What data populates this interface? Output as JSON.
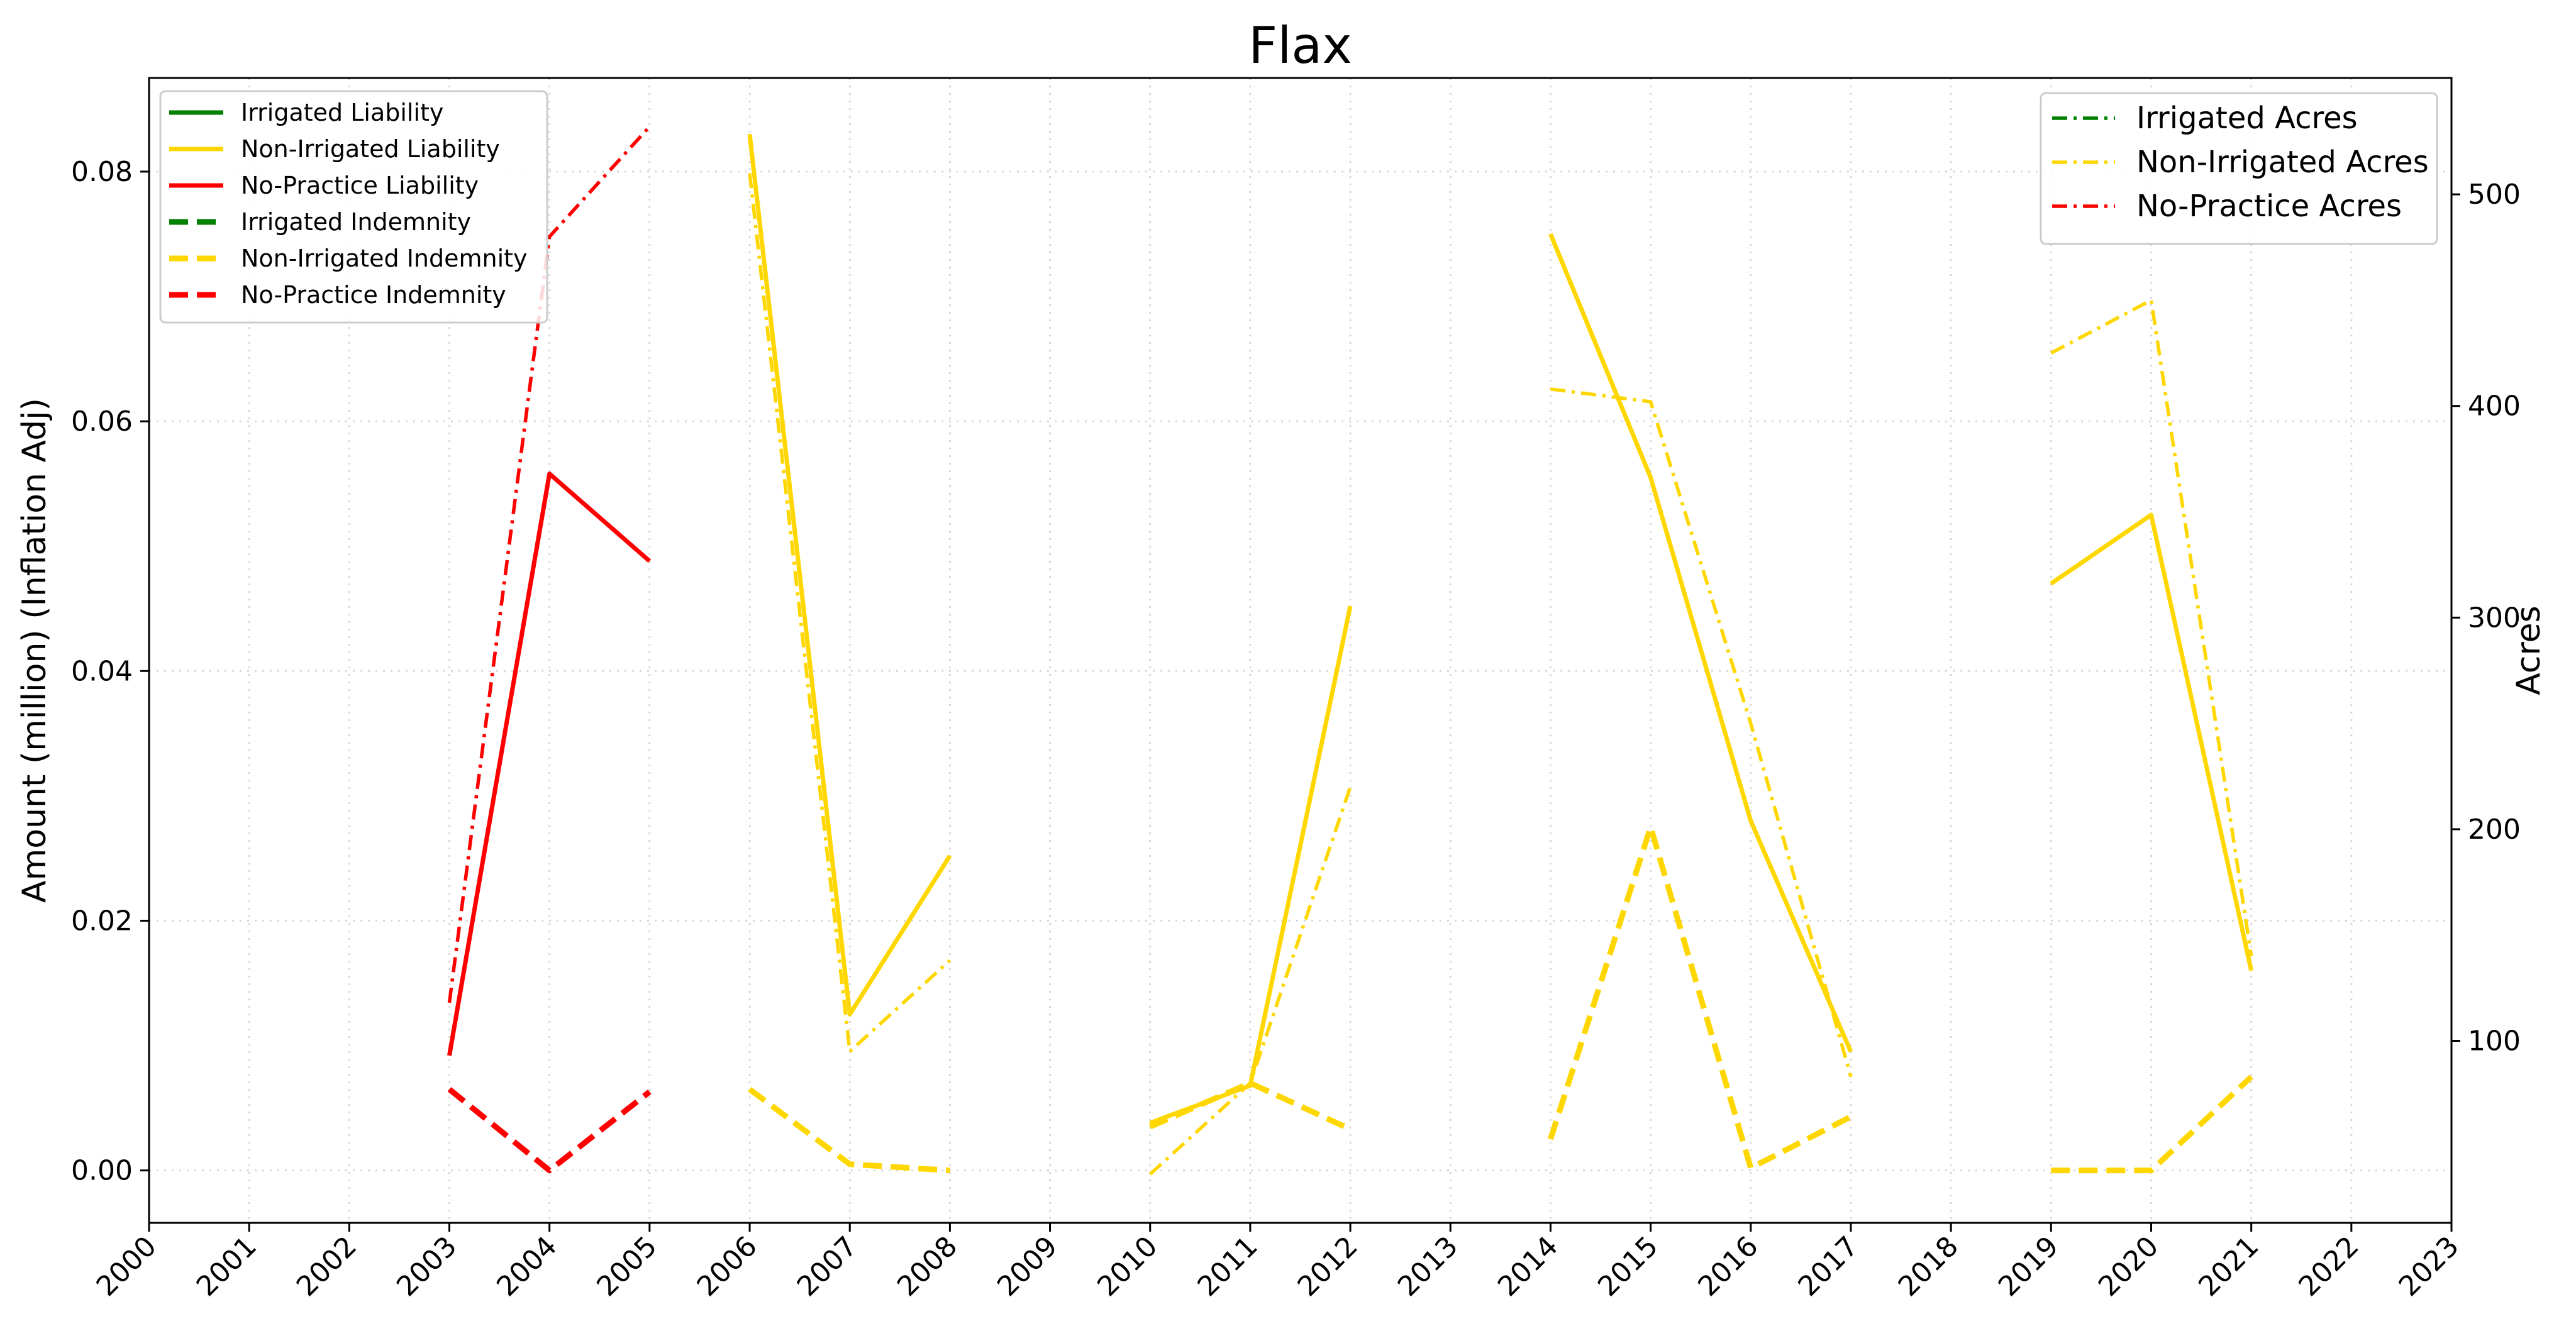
{
  "chart_data": {
    "type": "line",
    "title": "Flax",
    "xlabel": "",
    "ylabel": "Amount (million) (Inflation Adj)",
    "y2label": "Acres",
    "x": [
      2000,
      2001,
      2002,
      2003,
      2004,
      2005,
      2006,
      2007,
      2008,
      2009,
      2010,
      2011,
      2012,
      2013,
      2014,
      2015,
      2016,
      2017,
      2018,
      2019,
      2020,
      2021,
      2022,
      2023
    ],
    "x_ticks": [
      "2000",
      "2001",
      "2002",
      "2003",
      "2004",
      "2005",
      "2006",
      "2007",
      "2008",
      "2009",
      "2010",
      "2011",
      "2012",
      "2013",
      "2014",
      "2015",
      "2016",
      "2017",
      "2018",
      "2019",
      "2020",
      "2021",
      "2022",
      "2023"
    ],
    "xlim": [
      2000,
      2023
    ],
    "ylim": [
      -0.0042,
      0.0875
    ],
    "y_ticks": [
      "0.00",
      "0.02",
      "0.04",
      "0.06",
      "0.08"
    ],
    "y_tick_values": [
      0,
      0.02,
      0.04,
      0.06,
      0.08
    ],
    "y2lim": [
      14,
      555
    ],
    "y2_ticks": [
      "100",
      "200",
      "300",
      "400",
      "500"
    ],
    "y2_tick_values": [
      100,
      200,
      300,
      400,
      500
    ],
    "grid": true,
    "legend_left_position": "upper-left",
    "legend_right_position": "upper-right",
    "series": [
      {
        "name": "Irrigated Liability",
        "axis": "left",
        "style": "solid",
        "color": "#008000",
        "points": []
      },
      {
        "name": "Non-Irrigated Liability",
        "axis": "left",
        "style": "solid",
        "color": "#FFD700",
        "points": [
          [
            2006,
            0.083
          ],
          [
            2007,
            0.0125
          ],
          [
            2008,
            0.0252
          ],
          [
            2010,
            0.0038
          ],
          [
            2011,
            0.0068
          ],
          [
            2012,
            0.0452
          ],
          [
            2014,
            0.075
          ],
          [
            2015,
            0.0555
          ],
          [
            2016,
            0.028
          ],
          [
            2017,
            0.0095
          ],
          [
            2019,
            0.047
          ],
          [
            2020,
            0.0525
          ],
          [
            2021,
            0.016
          ]
        ]
      },
      {
        "name": "No-Practice Liability",
        "axis": "left",
        "style": "solid",
        "color": "#FF0000",
        "points": [
          [
            2003,
            0.0092
          ],
          [
            2004,
            0.0558
          ],
          [
            2005,
            0.0488
          ]
        ]
      },
      {
        "name": "Irrigated Indemnity",
        "axis": "left",
        "style": "dashed",
        "color": "#008000",
        "points": []
      },
      {
        "name": "Non-Irrigated Indemnity",
        "axis": "left",
        "style": "dashed",
        "color": "#FFD700",
        "points": [
          [
            2006,
            0.0065
          ],
          [
            2007,
            0.0005
          ],
          [
            2008,
            0.0
          ],
          [
            2010,
            0.0035
          ],
          [
            2011,
            0.007
          ],
          [
            2012,
            0.0033
          ],
          [
            2014,
            0.0025
          ],
          [
            2015,
            0.0275
          ],
          [
            2016,
            0.0002
          ],
          [
            2017,
            0.0043
          ],
          [
            2019,
            0.0
          ],
          [
            2020,
            0.0
          ],
          [
            2021,
            0.0075
          ]
        ]
      },
      {
        "name": "No-Practice Indemnity",
        "axis": "left",
        "style": "dashed",
        "color": "#FF0000",
        "points": [
          [
            2003,
            0.0065
          ],
          [
            2004,
            0.0
          ],
          [
            2005,
            0.0063
          ]
        ]
      },
      {
        "name": "Irrigated Acres",
        "axis": "right",
        "style": "dashdot",
        "color": "#008000",
        "points": []
      },
      {
        "name": "Non-Irrigated Acres",
        "axis": "right",
        "style": "dashdot",
        "color": "#FFD700",
        "points": [
          [
            2006,
            510
          ],
          [
            2007,
            95
          ],
          [
            2008,
            138
          ],
          [
            2010,
            37
          ],
          [
            2011,
            80
          ],
          [
            2012,
            220
          ],
          [
            2014,
            408
          ],
          [
            2015,
            402
          ],
          [
            2016,
            250
          ],
          [
            2017,
            83
          ],
          [
            2019,
            425
          ],
          [
            2020,
            450
          ],
          [
            2021,
            140
          ]
        ]
      },
      {
        "name": "No-Practice Acres",
        "axis": "right",
        "style": "dashdot",
        "color": "#FF0000",
        "points": [
          [
            2003,
            118
          ],
          [
            2004,
            480
          ],
          [
            2005,
            532
          ]
        ]
      }
    ]
  }
}
